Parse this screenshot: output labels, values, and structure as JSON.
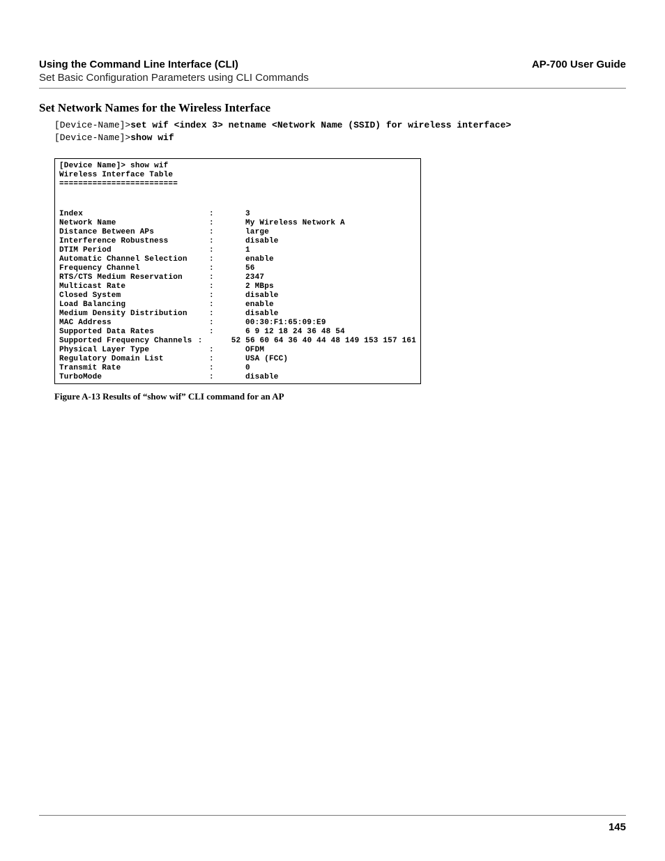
{
  "header": {
    "left": "Using the Command Line Interface (CLI)",
    "right": "AP-700 User Guide",
    "sub": "Set Basic Configuration Parameters using CLI Commands"
  },
  "section_title": "Set Network Names for the Wireless Interface",
  "cli": {
    "line1_prompt": "[Device-Name]>",
    "line1_cmd": "set wif <index 3> netname <Network Name (SSID) for wireless interface>",
    "line2_prompt": "[Device-Name]>",
    "line2_cmd": "show wif"
  },
  "terminal": {
    "header1": "[Device Name]> show wif",
    "header2": "Wireless Interface Table",
    "header3": "=========================",
    "rows": [
      {
        "label": "Index",
        "value": "3"
      },
      {
        "label": "Network Name",
        "value": "My Wireless Network A"
      },
      {
        "label": "Distance Between APs",
        "value": "large"
      },
      {
        "label": "Interference Robustness",
        "value": "disable"
      },
      {
        "label": "DTIM Period",
        "value": "1"
      },
      {
        "label": "Automatic Channel Selection",
        "value": "enable"
      },
      {
        "label": "Frequency Channel",
        "value": "56"
      },
      {
        "label": "RTS/CTS Medium Reservation",
        "value": "2347"
      },
      {
        "label": "Multicast Rate",
        "value": "2 MBps"
      },
      {
        "label": "Closed System",
        "value": "disable"
      },
      {
        "label": "Load Balancing",
        "value": "enable"
      },
      {
        "label": "Medium Density Distribution",
        "value": "disable"
      },
      {
        "label": "MAC Address",
        "value": "00:30:F1:65:09:E9"
      },
      {
        "label": "Supported Data Rates",
        "value": "6 9 12 18 24 36 48 54"
      },
      {
        "label": "Supported Frequency Channels",
        "value": "52 56 60 64 36 40 44 48 149 153 157 161"
      },
      {
        "label": "Physical Layer Type",
        "value": "OFDM"
      },
      {
        "label": "Regulatory Domain List",
        "value": "USA (FCC)"
      },
      {
        "label": "Transmit Rate",
        "value": "0"
      },
      {
        "label": "TurboMode",
        "value": "disable"
      }
    ]
  },
  "figure_caption": "Figure A-13   Results of “show wif” CLI command for an AP",
  "page_number": "145",
  "colors": {
    "text": "#000000",
    "rule": "#777777",
    "background": "#ffffff"
  },
  "typography": {
    "header_fontsize": 15,
    "section_title_fontsize": 17,
    "cli_fontsize": 13,
    "terminal_fontsize": 11,
    "caption_fontsize": 13
  }
}
